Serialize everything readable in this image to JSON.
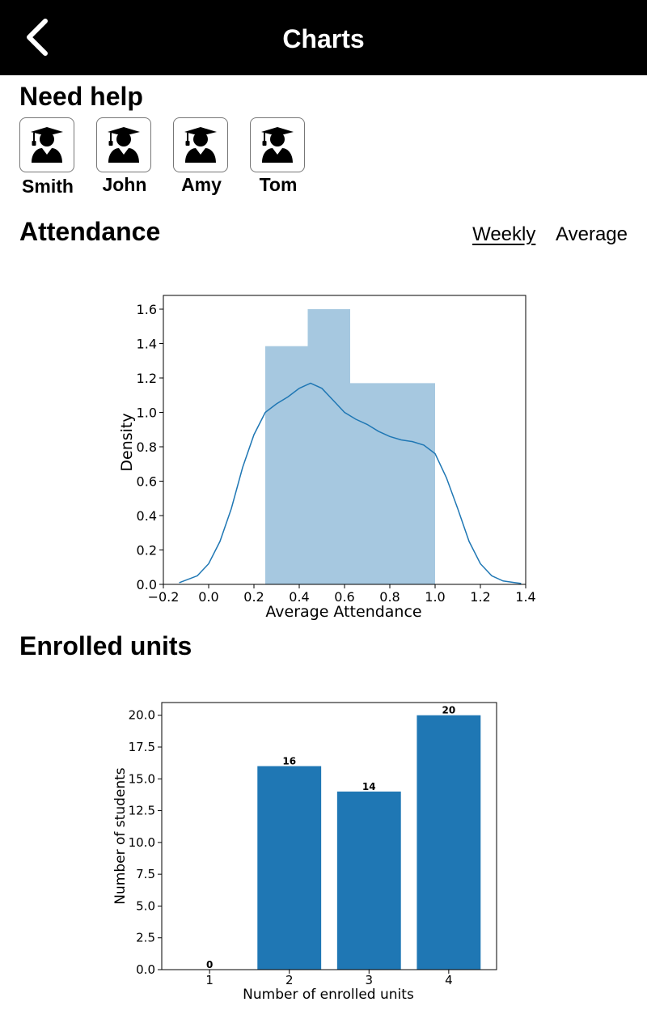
{
  "header": {
    "title": "Charts",
    "back_icon": "chevron-left-icon"
  },
  "need_help": {
    "title": "Need help",
    "icon": "graduate-icon",
    "tutors": [
      {
        "name": "Smith"
      },
      {
        "name": "John"
      },
      {
        "name": "Amy"
      },
      {
        "name": "Tom"
      }
    ]
  },
  "attendance": {
    "title": "Attendance",
    "tabs": [
      {
        "label": "Weekly",
        "active": true
      },
      {
        "label": "Average",
        "active": false
      }
    ]
  },
  "enrolled": {
    "title": "Enrolled units"
  },
  "chart_data": [
    {
      "type": "histogram",
      "xlabel": "Average Attendance",
      "ylabel": "Density",
      "xlim": [
        -0.2,
        1.4
      ],
      "ylim": [
        0,
        1.68
      ],
      "x_ticks": [
        -0.2,
        0.0,
        0.2,
        0.4,
        0.6,
        0.8,
        1.0,
        1.2,
        1.4
      ],
      "y_ticks": [
        0.0,
        0.2,
        0.4,
        0.6,
        0.8,
        1.0,
        1.2,
        1.4,
        1.6
      ],
      "bins": [
        {
          "x0": 0.25,
          "x1": 0.4375,
          "density": 1.385
        },
        {
          "x0": 0.4375,
          "x1": 0.625,
          "density": 1.6
        },
        {
          "x0": 0.625,
          "x1": 1.0,
          "density": 1.17
        }
      ],
      "bar_color": "#a6c8e0",
      "kde": {
        "color": "#1f77b4",
        "x": [
          -0.13,
          -0.05,
          0.0,
          0.05,
          0.1,
          0.15,
          0.2,
          0.25,
          0.3,
          0.35,
          0.4,
          0.45,
          0.5,
          0.55,
          0.6,
          0.65,
          0.7,
          0.75,
          0.8,
          0.85,
          0.9,
          0.95,
          1.0,
          1.05,
          1.1,
          1.15,
          1.2,
          1.25,
          1.3,
          1.38
        ],
        "y": [
          0.01,
          0.05,
          0.12,
          0.25,
          0.44,
          0.68,
          0.87,
          1.0,
          1.05,
          1.09,
          1.14,
          1.17,
          1.14,
          1.07,
          1.0,
          0.96,
          0.93,
          0.89,
          0.86,
          0.84,
          0.83,
          0.81,
          0.76,
          0.62,
          0.44,
          0.25,
          0.12,
          0.05,
          0.02,
          0.005
        ]
      }
    },
    {
      "type": "bar",
      "categories": [
        "1",
        "2",
        "3",
        "4"
      ],
      "values": [
        0,
        16,
        14,
        20
      ],
      "data_labels": [
        "0",
        "16",
        "14",
        "20"
      ],
      "xlabel": "Number of enrolled units",
      "ylabel": "Number of students",
      "ylim": [
        0,
        21
      ],
      "y_ticks": [
        0.0,
        2.5,
        5.0,
        7.5,
        10.0,
        12.5,
        15.0,
        17.5,
        20.0
      ],
      "bar_color": "#1f77b4"
    }
  ]
}
